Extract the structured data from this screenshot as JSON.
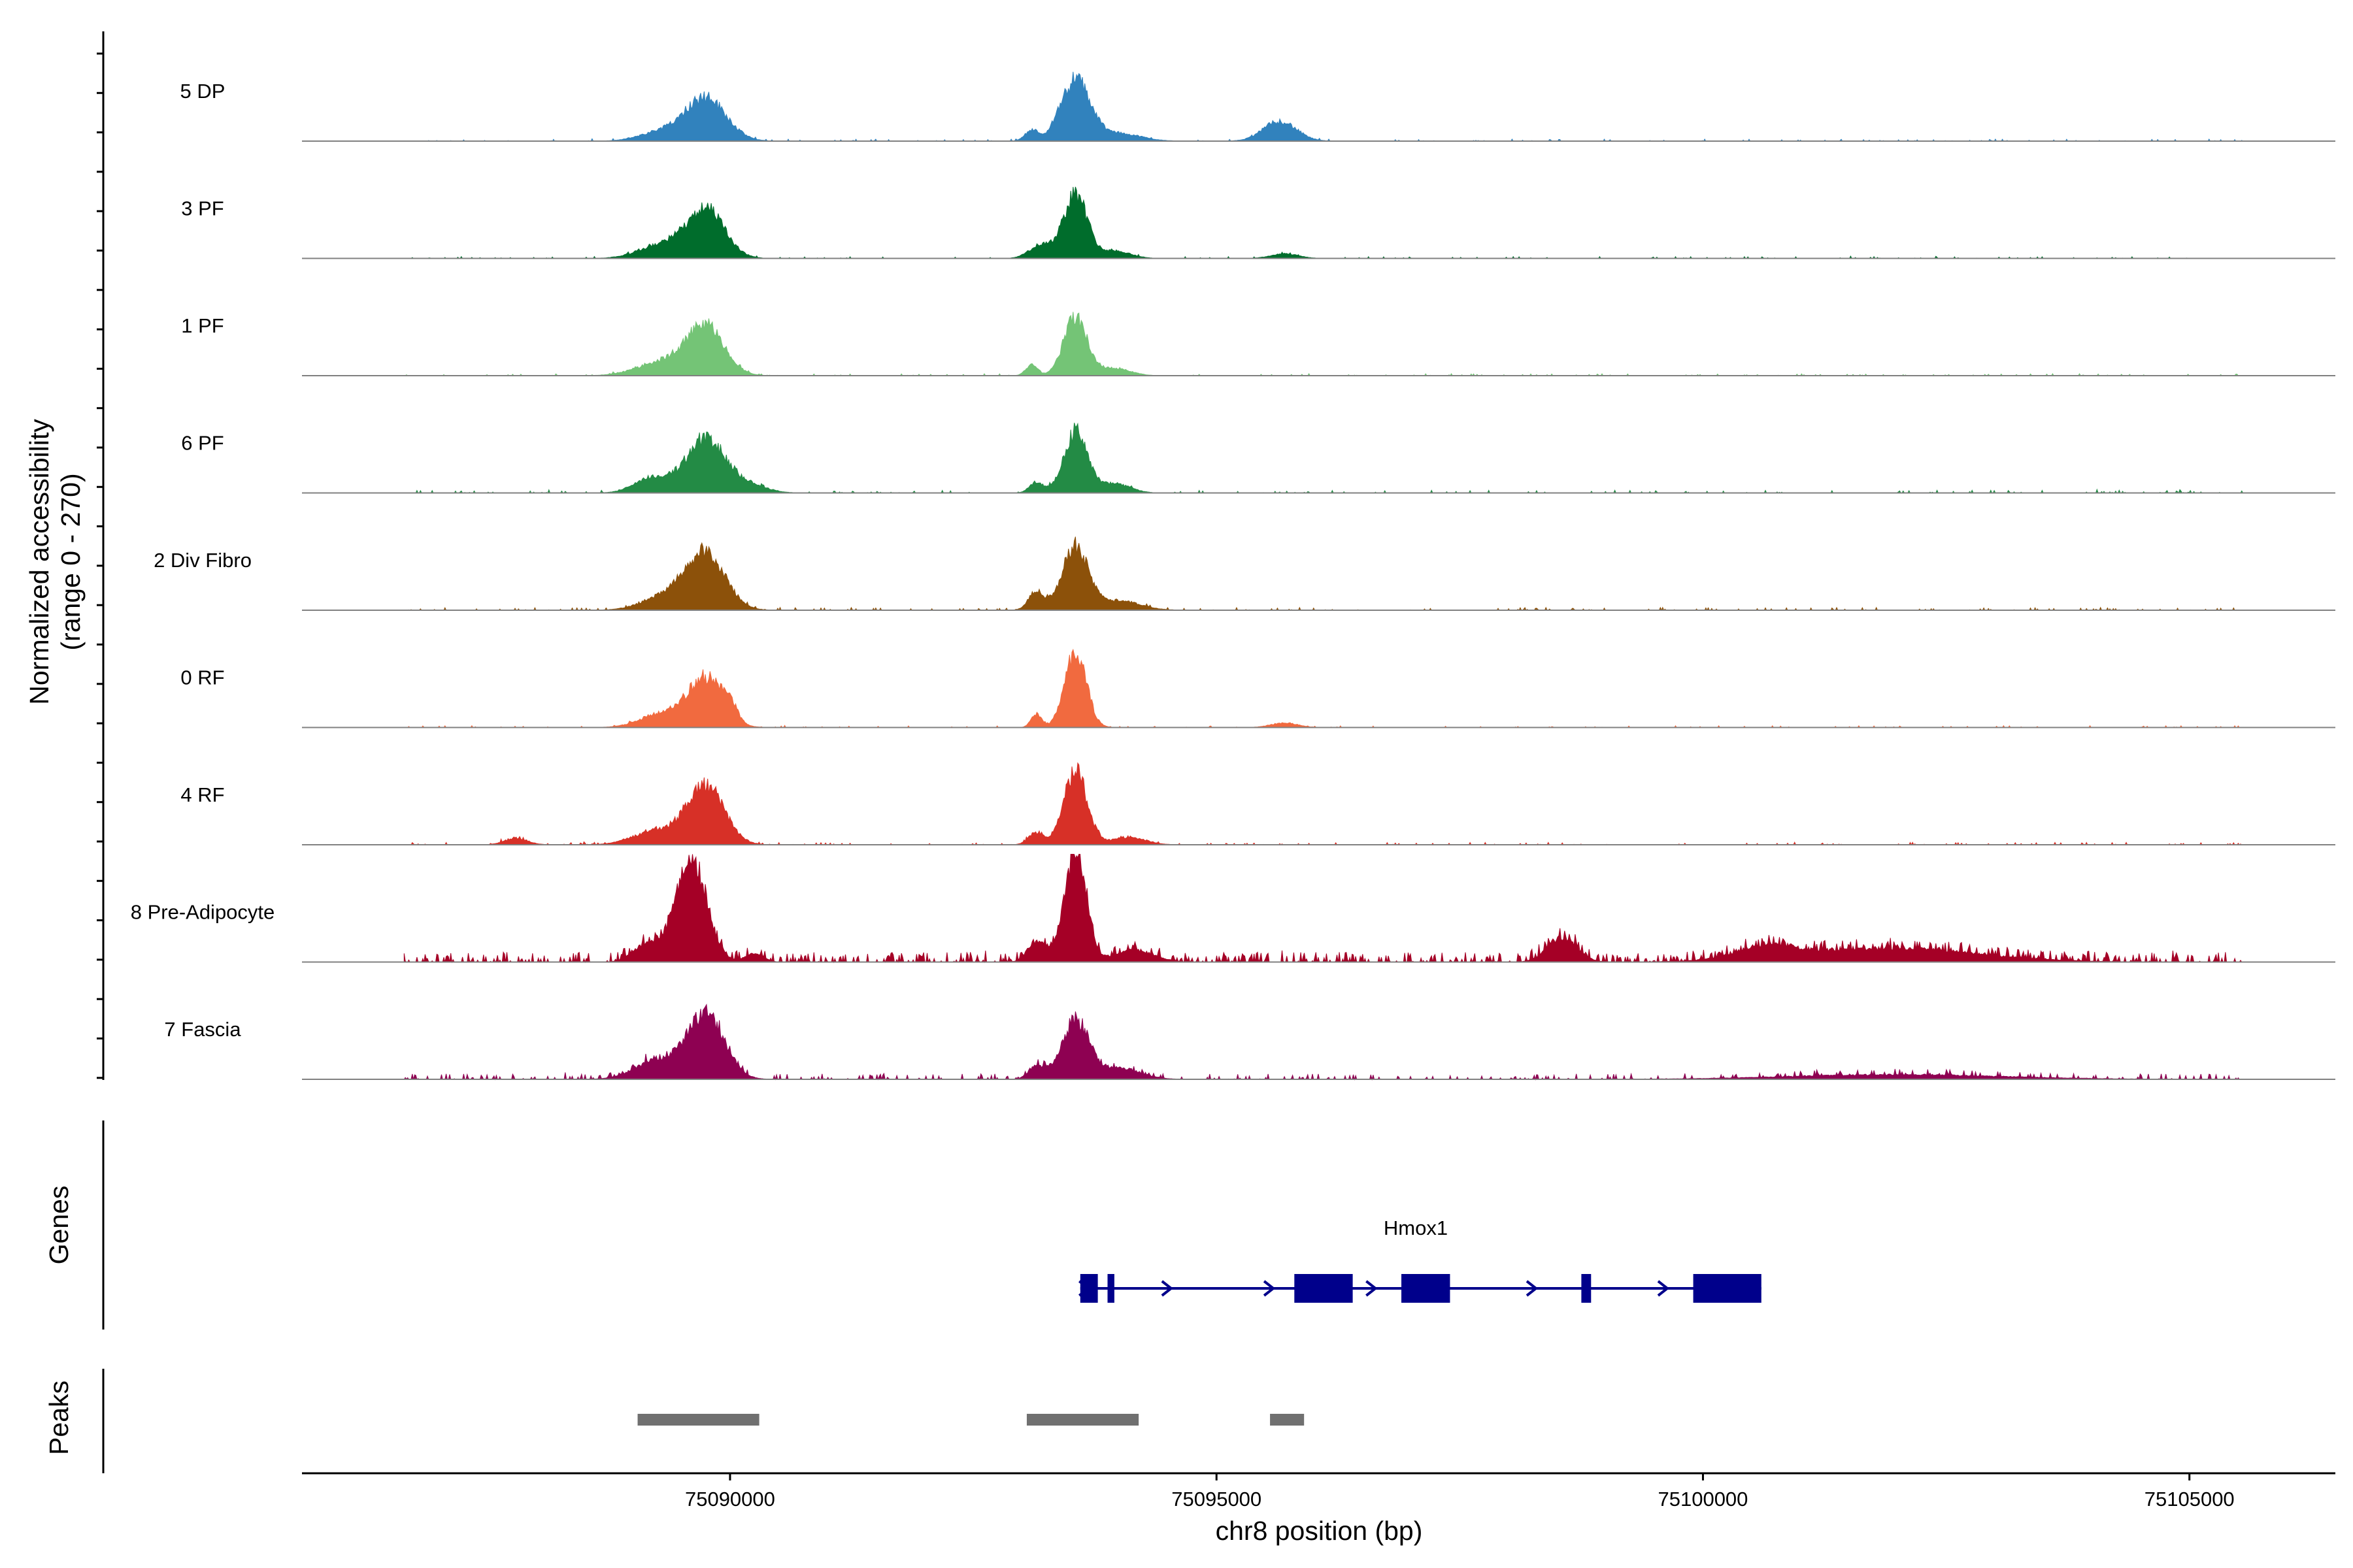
{
  "chart_data": {
    "type": "area",
    "title": "",
    "xlabel": "chr8 position (bp)",
    "ylabel_line1": "Normalized accessibility",
    "ylabel_line2": "(range 0 - 270)",
    "yrange": [
      0,
      270
    ],
    "xlim": [
      75085600,
      75106500
    ],
    "x_ticks": [
      75090000,
      75095000,
      75100000,
      75105000
    ],
    "x_tick_labels": [
      "75090000",
      "75095000",
      "75100000",
      "75105000"
    ],
    "track_start": 75086650,
    "track_end": 75105550,
    "tracks": [
      {
        "name": "5 DP",
        "color": "#3182bd",
        "noise": 0.018,
        "peaks": [
          [
            75089750,
            140,
            210
          ],
          [
            75089300,
            30,
            220
          ],
          [
            75093550,
            200,
            150
          ],
          [
            75093100,
            35,
            70
          ],
          [
            75094000,
            25,
            220
          ],
          [
            75095650,
            65,
            170
          ]
        ]
      },
      {
        "name": "3 PF",
        "color": "#006d2c",
        "noise": 0.016,
        "peaks": [
          [
            75089750,
            160,
            190
          ],
          [
            75089300,
            45,
            230
          ],
          [
            75093550,
            210,
            120
          ],
          [
            75093200,
            45,
            120
          ],
          [
            75093950,
            25,
            160
          ],
          [
            75095700,
            15,
            140
          ]
        ]
      },
      {
        "name": "1 PF",
        "color": "#74c476",
        "noise": 0.018,
        "peaks": [
          [
            75089750,
            160,
            190
          ],
          [
            75089300,
            45,
            250
          ],
          [
            75093550,
            190,
            120
          ],
          [
            75093100,
            35,
            60
          ],
          [
            75093950,
            25,
            160
          ]
        ]
      },
      {
        "name": "6 PF",
        "color": "#238b45",
        "noise": 0.025,
        "peaks": [
          [
            75089750,
            180,
            200
          ],
          [
            75089200,
            50,
            180
          ],
          [
            75090200,
            25,
            180
          ],
          [
            75093550,
            200,
            120
          ],
          [
            75093150,
            35,
            70
          ],
          [
            75093950,
            30,
            160
          ]
        ]
      },
      {
        "name": "2 Div Fibro",
        "color": "#8c510a",
        "noise": 0.025,
        "peaks": [
          [
            75089750,
            180,
            200
          ],
          [
            75089350,
            45,
            240
          ],
          [
            75093550,
            210,
            130
          ],
          [
            75093150,
            60,
            80
          ],
          [
            75094000,
            30,
            220
          ]
        ]
      },
      {
        "name": "0 RF",
        "color": "#f16a3f",
        "noise": 0.016,
        "peaks": [
          [
            75089750,
            160,
            180
          ],
          [
            75089300,
            45,
            220
          ],
          [
            75090000,
            45,
            70
          ],
          [
            75093550,
            250,
            110
          ],
          [
            75093150,
            45,
            55
          ],
          [
            75095700,
            15,
            140
          ]
        ]
      },
      {
        "name": "4 RF",
        "color": "#d73027",
        "noise": 0.022,
        "peaks": [
          [
            75089750,
            190,
            190
          ],
          [
            75089250,
            45,
            240
          ],
          [
            75087800,
            20,
            120
          ],
          [
            75093550,
            240,
            120
          ],
          [
            75093150,
            40,
            80
          ],
          [
            75094100,
            25,
            170
          ]
        ]
      },
      {
        "name": "8 Pre-Adipocyte",
        "color": "#a50026",
        "noise": 0.09,
        "peaks": [
          [
            75089600,
            330,
            160
          ],
          [
            75089150,
            60,
            140
          ],
          [
            75090250,
            30,
            90
          ],
          [
            75093550,
            370,
            110
          ],
          [
            75093150,
            70,
            90
          ],
          [
            75094150,
            40,
            200
          ],
          [
            75098550,
            80,
            150
          ],
          [
            75101900,
            45,
            900
          ],
          [
            75100650,
            40,
            300
          ]
        ]
      },
      {
        "name": "7 Fascia",
        "color": "#8e0152",
        "noise": 0.05,
        "peaks": [
          [
            75089750,
            210,
            190
          ],
          [
            75089250,
            60,
            230
          ],
          [
            75093550,
            190,
            140
          ],
          [
            75093150,
            45,
            80
          ],
          [
            75094000,
            35,
            220
          ],
          [
            75102000,
            15,
            1100
          ]
        ]
      }
    ],
    "genes_label": "Genes",
    "gene": {
      "name": "Hmox1",
      "strand": "+",
      "start": 75093600,
      "end": 75100600,
      "color": "#00008b",
      "exons": [
        [
          75093600,
          75093780
        ],
        [
          75093880,
          75093950
        ],
        [
          75095800,
          75096400
        ],
        [
          75096900,
          75097400
        ],
        [
          75098750,
          75098850
        ],
        [
          75099900,
          75100600
        ]
      ],
      "arrows": [
        75093650,
        75094500,
        75095550,
        75096600,
        75098250,
        75099600
      ]
    },
    "peaks_label": "Peaks",
    "peaks_color": "#707070",
    "peak_regions": [
      [
        75089050,
        75090300
      ],
      [
        75093050,
        75094200
      ],
      [
        75095550,
        75095900
      ]
    ]
  }
}
